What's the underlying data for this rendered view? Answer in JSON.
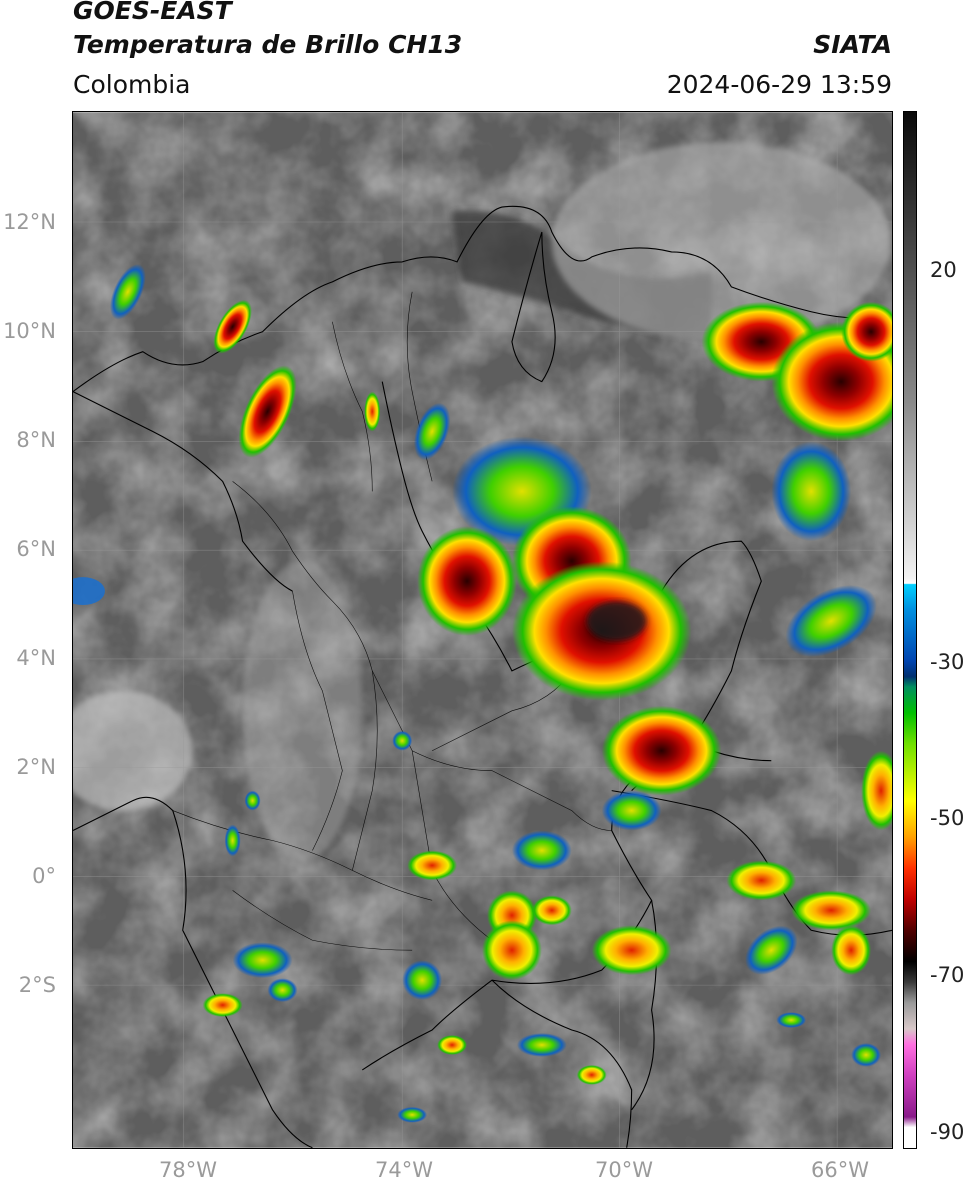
{
  "header": {
    "title_line1": "GOES-EAST",
    "title_line2": "Temperatura de Brillo CH13",
    "org": "SIATA",
    "region": "Colombia",
    "datetime": "2024-06-29 13:59"
  },
  "map": {
    "lat_ticks": [
      "12°N",
      "10°N",
      "8°N",
      "6°N",
      "4°N",
      "2°N",
      "0°",
      "2°S"
    ],
    "lon_ticks": [
      "78°W",
      "74°W",
      "70°W",
      "66°W"
    ]
  },
  "colorbar": {
    "ticks": [
      "20",
      "-30",
      "-50",
      "-70",
      "-90"
    ]
  },
  "colors": {
    "background_cloud": "#606060",
    "cold_cloud_red": "#c00000",
    "core_dark": "#3a0000",
    "green": "#22c000",
    "yellow": "#ffe000"
  }
}
